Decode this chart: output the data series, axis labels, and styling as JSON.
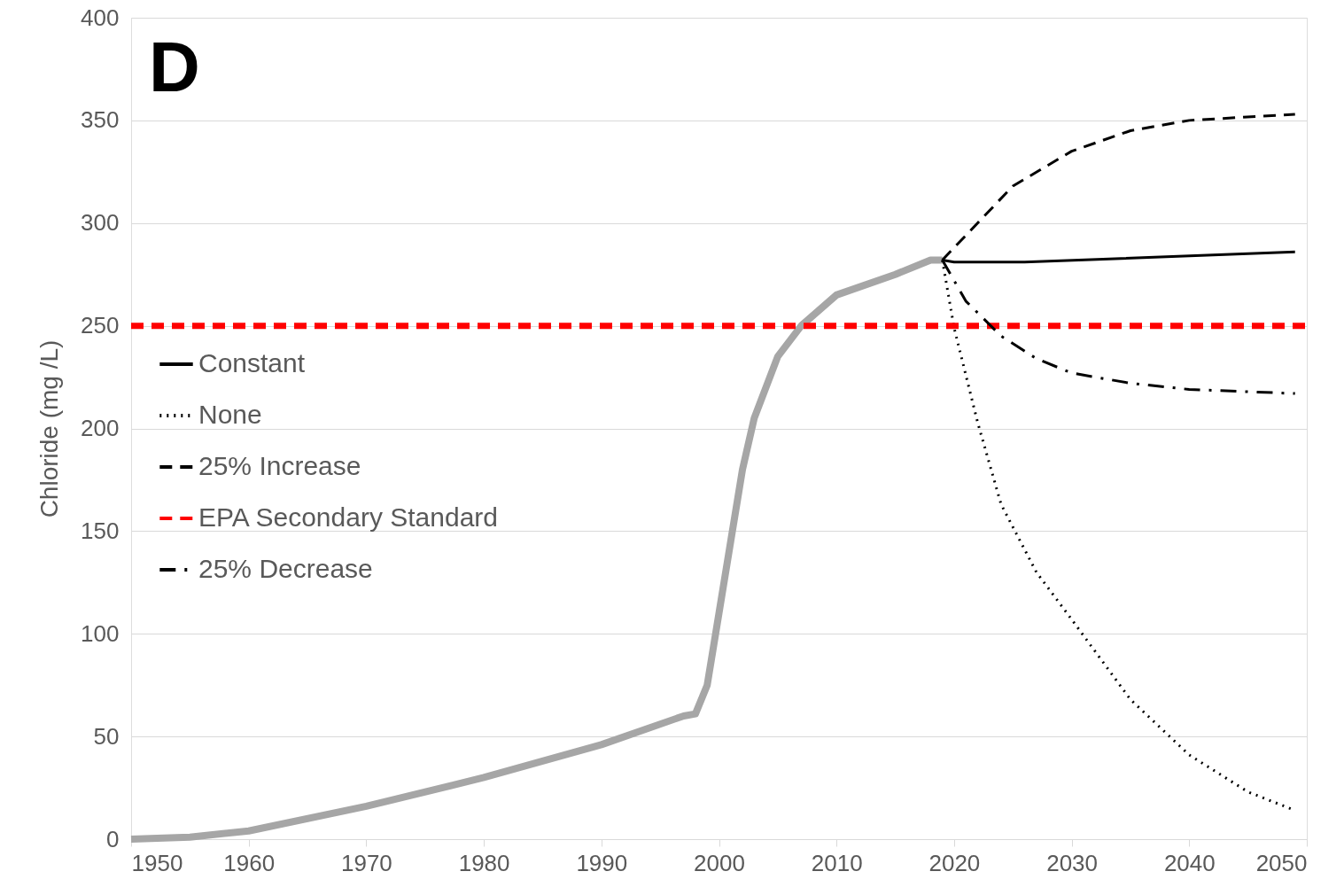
{
  "chart_data": {
    "type": "line",
    "ylabel": "Chloride (mg /L)",
    "annotations": [
      "D"
    ],
    "xlim": [
      1950,
      2050
    ],
    "xticks": [
      1950,
      1960,
      1970,
      1980,
      1990,
      2000,
      2010,
      2020,
      2030,
      2040,
      2050
    ],
    "ylim": [
      0,
      400
    ],
    "yticks": [
      0,
      50,
      100,
      150,
      200,
      250,
      300,
      350,
      400
    ],
    "grid": "y",
    "legend": "left",
    "marker": "none",
    "series": [
      {
        "color": "#a6a6a6",
        "line_style": "solid",
        "x": [
          1950,
          1955,
          1960,
          1970,
          1980,
          1990,
          1997,
          1998,
          1999,
          2000,
          2001,
          2002,
          2003,
          2005,
          2007,
          2010,
          2015,
          2018,
          2019
        ],
        "values": [
          0,
          1,
          4,
          16,
          30,
          46,
          60,
          61,
          75,
          110,
          145,
          180,
          205,
          235,
          250,
          265,
          275,
          282,
          282
        ]
      },
      {
        "name": "Constant",
        "color": "#000000",
        "line_style": "solid",
        "x": [
          2019,
          2020,
          2026,
          2049
        ],
        "values": [
          282,
          281,
          281,
          286
        ]
      },
      {
        "name": "None",
        "color": "#000000",
        "line_style": "dotted",
        "x": [
          2019,
          2020,
          2022,
          2024,
          2027,
          2030,
          2035,
          2040,
          2045,
          2049
        ],
        "values": [
          282,
          249,
          203,
          163,
          130,
          107,
          68,
          41,
          23,
          14
        ]
      },
      {
        "name": "25% Increase",
        "color": "#000000",
        "line_style": "dashed",
        "x": [
          2019,
          2022,
          2025,
          2030,
          2035,
          2040,
          2049
        ],
        "values": [
          282,
          300,
          318,
          335,
          345,
          350,
          353
        ]
      },
      {
        "name": "EPA Secondary Standard",
        "color": "#ff0000",
        "line_style": "dashed",
        "x": [
          1950,
          2050
        ],
        "values": [
          250,
          250
        ]
      },
      {
        "name": "25% Decrease",
        "color": "#000000",
        "line_style": "dashdot",
        "x": [
          2019,
          2021,
          2024,
          2027,
          2030,
          2035,
          2040,
          2049
        ],
        "values": [
          282,
          262,
          245,
          234,
          227,
          222,
          219,
          217
        ]
      }
    ]
  }
}
